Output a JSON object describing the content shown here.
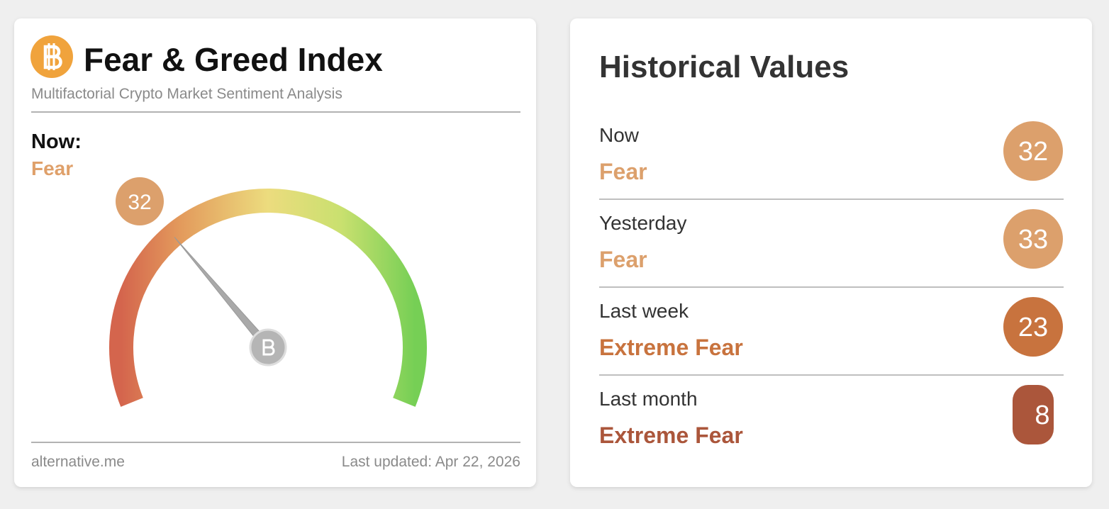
{
  "header": {
    "title": "Fear & Greed Index",
    "subtitle": "Multifactorial Crypto Market Sentiment Analysis"
  },
  "now": {
    "label": "Now:",
    "classification": "Fear",
    "color": "#dfa06a"
  },
  "gauge": {
    "value": 32,
    "color": "#dca06c"
  },
  "footer": {
    "source": "alternative.me",
    "updated": "Last updated: Apr 22, 2026"
  },
  "historical": {
    "title": "Historical Values",
    "rows": [
      {
        "label": "Now",
        "classification": "Fear",
        "value": 32,
        "color": "#dca06c"
      },
      {
        "label": "Yesterday",
        "classification": "Fear",
        "value": 33,
        "color": "#dca06c"
      },
      {
        "label": "Last week",
        "classification": "Extreme Fear",
        "value": 23,
        "color": "#c8733e"
      },
      {
        "label": "Last month",
        "classification": "Extreme Fear",
        "value": 8,
        "color": "#ab563b"
      }
    ]
  }
}
